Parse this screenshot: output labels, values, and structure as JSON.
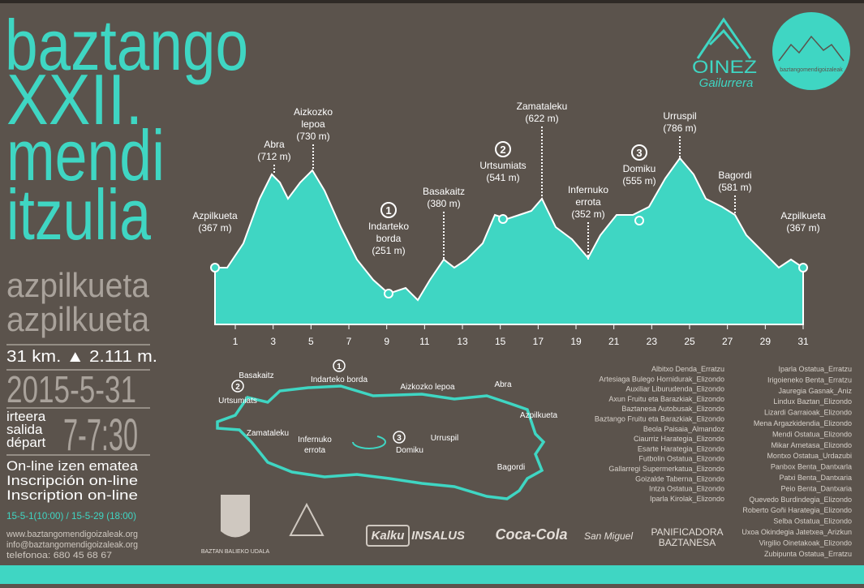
{
  "title": [
    "baztango",
    "XXII.",
    "mendi",
    "itzulia"
  ],
  "place": [
    "azpilkueta",
    "azpilkueta"
  ],
  "stats": "31 km. ▲ 2.111 m.",
  "date": "2015-5-31",
  "start_labels": [
    "irteera",
    "salida",
    "départ"
  ],
  "start_time": "7-7:30",
  "registration": [
    "On-line izen ematea",
    "Inscripción on-line",
    "Inscription on-line"
  ],
  "registration_dates": "15-5-1(10:00) / 15-5-29 (18:00)",
  "contact": [
    "www.baztangomendigoizaleak.org",
    "info@baztangomendigoizaleak.org",
    "telefonoa: 680 45 68 67"
  ],
  "logos": {
    "oinez": "OINEZ",
    "oinez_sub": "Gailurrera",
    "club": "baztangomendigoizaleak"
  },
  "profile": {
    "xlim": [
      0,
      31
    ],
    "xticks": [
      1,
      3,
      5,
      7,
      9,
      11,
      13,
      15,
      17,
      19,
      21,
      23,
      25,
      27,
      29,
      31
    ],
    "waypoints": [
      {
        "name": [
          "Azpilkueta"
        ],
        "elevation": "(367 m)"
      },
      {
        "name": [
          "Abra"
        ],
        "elevation": "(712 m)"
      },
      {
        "name": [
          "Aizkozko",
          "lepoa"
        ],
        "elevation": "(730 m)"
      },
      {
        "checkpoint": "1",
        "name": [
          "Indarteko",
          "borda"
        ],
        "elevation": "(251 m)"
      },
      {
        "name": [
          "Basakaitz"
        ],
        "elevation": "(380 m)"
      },
      {
        "checkpoint": "2",
        "name": [
          "Urtsumiats"
        ],
        "elevation": "(541 m)"
      },
      {
        "name": [
          "Zamataleku"
        ],
        "elevation": "(622 m)"
      },
      {
        "name": [
          "Infernuko",
          "errota"
        ],
        "elevation": "(352 m)"
      },
      {
        "checkpoint": "3",
        "name": [
          "Domiku"
        ],
        "elevation": "(555 m)"
      },
      {
        "name": [
          "Urruspil"
        ],
        "elevation": "(786 m)"
      },
      {
        "name": [
          "Bagordi"
        ],
        "elevation": "(581 m)"
      },
      {
        "name": [
          "Azpilkueta"
        ],
        "elevation": "(367 m)"
      }
    ]
  },
  "map": {
    "labels": [
      "Basakaitz",
      "1",
      "Indarteko borda",
      "2",
      "Urtsumiats",
      "Aizkozko lepoa",
      "Abra",
      "Azpilkueta",
      "Zamataleku",
      "Infernuko",
      "errota",
      "3",
      "Domiku",
      "Urruspil",
      "Bagordi"
    ]
  },
  "sponsors": [
    "BAZTAN BALIEKO UDALA",
    "Kalku",
    "INSALUS",
    "Coca-Cola",
    "San Miguel",
    "PANIFICADORA",
    "BAZTANESA"
  ],
  "shops": [
    [
      "Albitxo Denda_Erratzu",
      "Artesiaga Bulego Hornidurak_Elizondo",
      "Auxiliar Liburudenda_Elizondo",
      "Axun Fruitu eta Barazkiak_Elizondo",
      "Baztanesa Autobusak_Elizondo",
      "Baztango Fruitu eta Barazkiak_Elizondo",
      "Beola Paisaia_Almandoz",
      "Ciaurriz Harategia_Elizondo",
      "Esarte Harategia_Elizondo",
      "Futbolin Ostatua_Elizondo",
      "Gallarregi Supermerkatua_Elizondo",
      "Goizalde Taberna_Elizondo",
      "Intza Ostatua_Elizondo",
      "Iparla Kirolak_Elizondo"
    ],
    [
      "Iparla Ostatua_Erratzu",
      "Irigoieneko Benta_Erratzu",
      "Jauregia Gasnak_Aniz",
      "Lindux Baztan_Elizondo",
      "Lizardi Garraioak_Elizondo",
      "Mena Argazkidendia_Elizondo",
      "Mendi Ostatua_Elizondo",
      "Mikar Arnetasa_Elizondo",
      "Montxo Ostatua_Urdazubi",
      "Panbox Benta_Dantxarla",
      "Patxi Benta_Dantxaria",
      "Peio Benta_Dantxaria",
      "Quevedo Burdindegia_Elizondo",
      "Roberto Goñi Harategia_Elizondo",
      "Selba Ostatua_Elizondo",
      "Uxoa Okindegia Jatetxea_Arizkun",
      "Virgilio Oinetakoak_Elizondo",
      "Zubipunta Ostatua_Erratzu"
    ]
  ]
}
